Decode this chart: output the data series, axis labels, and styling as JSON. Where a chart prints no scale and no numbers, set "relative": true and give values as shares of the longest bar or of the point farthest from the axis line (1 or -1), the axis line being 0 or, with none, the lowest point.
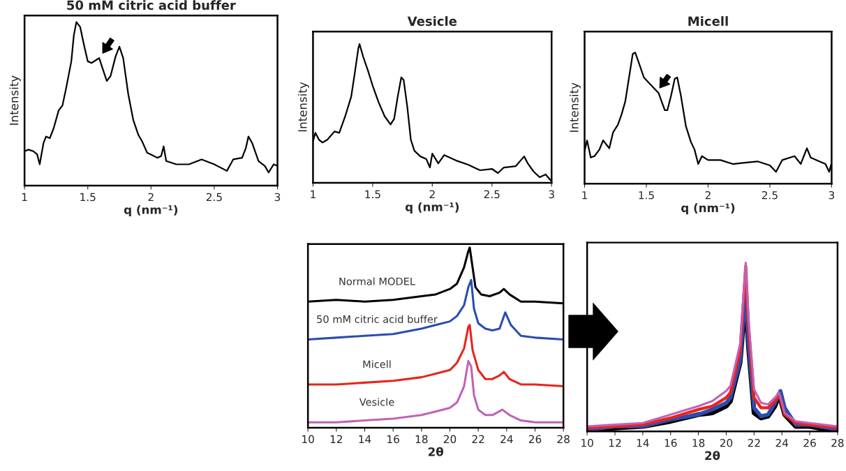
{
  "chart_data": [
    {
      "type": "line",
      "title": "50 mM citric acid buffer",
      "xlabel": "q (nm⁻¹)",
      "ylabel": "Intensity",
      "relative": true,
      "tick_labels": "x",
      "xlim": [
        1,
        3
      ],
      "xticks": [
        1,
        1.5,
        2,
        2.5,
        3
      ],
      "series": [
        {
          "color": "#000000",
          "x": [
            1.0,
            1.03,
            1.07,
            1.1,
            1.12,
            1.15,
            1.17,
            1.2,
            1.23,
            1.27,
            1.3,
            1.33,
            1.37,
            1.39,
            1.41,
            1.44,
            1.47,
            1.5,
            1.53,
            1.57,
            1.59,
            1.62,
            1.65,
            1.68,
            1.72,
            1.75,
            1.78,
            1.82,
            1.86,
            1.9,
            1.93,
            1.97,
            2.0,
            2.05,
            2.08,
            2.1,
            2.12,
            2.2,
            2.3,
            2.4,
            2.5,
            2.6,
            2.65,
            2.72,
            2.75,
            2.77,
            2.8,
            2.85,
            2.9,
            2.93,
            2.97,
            3.0
          ],
          "values": [
            0.21,
            0.22,
            0.21,
            0.19,
            0.13,
            0.26,
            0.3,
            0.29,
            0.35,
            0.46,
            0.49,
            0.6,
            0.76,
            0.92,
            1.0,
            0.97,
            0.86,
            0.76,
            0.75,
            0.77,
            0.78,
            0.71,
            0.64,
            0.67,
            0.79,
            0.85,
            0.78,
            0.56,
            0.4,
            0.31,
            0.27,
            0.2,
            0.19,
            0.17,
            0.18,
            0.24,
            0.15,
            0.13,
            0.13,
            0.16,
            0.13,
            0.09,
            0.16,
            0.17,
            0.23,
            0.3,
            0.26,
            0.15,
            0.12,
            0.08,
            0.13,
            0.12
          ]
        }
      ]
    },
    {
      "type": "line",
      "title": "Vesicle",
      "xlabel": "q (nm⁻¹)",
      "ylabel": "Intensity",
      "relative": true,
      "tick_labels": "x",
      "xlim": [
        1,
        3
      ],
      "xticks": [
        1,
        1.5,
        2,
        2.5,
        3
      ],
      "series": [
        {
          "color": "#000000",
          "x": [
            1.0,
            1.02,
            1.05,
            1.08,
            1.12,
            1.18,
            1.22,
            1.27,
            1.32,
            1.35,
            1.38,
            1.39,
            1.42,
            1.46,
            1.5,
            1.55,
            1.6,
            1.65,
            1.68,
            1.71,
            1.74,
            1.76,
            1.79,
            1.82,
            1.85,
            1.9,
            1.95,
            1.98,
            2.0,
            2.05,
            2.1,
            2.2,
            2.3,
            2.4,
            2.5,
            2.55,
            2.6,
            2.7,
            2.77,
            2.8,
            2.85,
            2.9,
            2.95,
            3.0
          ],
          "values": [
            0.3,
            0.36,
            0.31,
            0.29,
            0.31,
            0.37,
            0.36,
            0.48,
            0.62,
            0.79,
            0.97,
            1.0,
            0.91,
            0.81,
            0.7,
            0.58,
            0.48,
            0.42,
            0.46,
            0.62,
            0.76,
            0.74,
            0.55,
            0.31,
            0.23,
            0.19,
            0.17,
            0.11,
            0.21,
            0.14,
            0.2,
            0.16,
            0.13,
            0.09,
            0.1,
            0.07,
            0.11,
            0.12,
            0.19,
            0.14,
            0.08,
            0.04,
            0.06,
            0.01
          ]
        }
      ]
    },
    {
      "type": "line",
      "title": "Micell",
      "xlabel": "q (nm⁻¹)",
      "ylabel": "Intensity",
      "relative": true,
      "tick_labels": "x",
      "xlim": [
        1,
        3
      ],
      "xticks": [
        1,
        1.5,
        2,
        2.5,
        3
      ],
      "series": [
        {
          "color": "#000000",
          "x": [
            1.0,
            1.02,
            1.05,
            1.08,
            1.12,
            1.15,
            1.2,
            1.23,
            1.27,
            1.3,
            1.33,
            1.36,
            1.39,
            1.41,
            1.44,
            1.48,
            1.53,
            1.58,
            1.6,
            1.63,
            1.65,
            1.67,
            1.7,
            1.73,
            1.75,
            1.78,
            1.82,
            1.86,
            1.89,
            1.92,
            1.95,
            2.0,
            2.1,
            2.2,
            2.3,
            2.4,
            2.5,
            2.55,
            2.6,
            2.7,
            2.75,
            2.8,
            2.83,
            2.9,
            2.95,
            2.98,
            3.0
          ],
          "values": [
            0.25,
            0.33,
            0.2,
            0.21,
            0.26,
            0.33,
            0.27,
            0.39,
            0.45,
            0.53,
            0.63,
            0.81,
            0.99,
            1.0,
            0.92,
            0.81,
            0.76,
            0.71,
            0.69,
            0.61,
            0.56,
            0.56,
            0.67,
            0.8,
            0.81,
            0.67,
            0.44,
            0.32,
            0.26,
            0.15,
            0.21,
            0.18,
            0.18,
            0.15,
            0.16,
            0.17,
            0.14,
            0.09,
            0.18,
            0.21,
            0.15,
            0.27,
            0.2,
            0.17,
            0.15,
            0.09,
            0.16
          ]
        }
      ]
    },
    {
      "type": "line",
      "xlabel": "2θ",
      "relative": true,
      "tick_labels": "x",
      "xlim": [
        10,
        28
      ],
      "xticks": [
        10,
        12,
        14,
        16,
        18,
        20,
        22,
        24,
        26,
        28
      ],
      "series": [
        {
          "name": "Normal MODEL",
          "color": "#000000",
          "x": [
            10,
            12,
            14,
            16,
            18,
            19,
            20,
            20.5,
            21,
            21.3,
            21.4,
            21.6,
            21.8,
            22.2,
            22.8,
            23.5,
            23.8,
            24.2,
            25,
            26,
            28
          ],
          "values": [
            0.7,
            0.71,
            0.7,
            0.71,
            0.73,
            0.74,
            0.77,
            0.8,
            0.89,
            0.98,
            1.0,
            0.89,
            0.78,
            0.74,
            0.73,
            0.75,
            0.77,
            0.74,
            0.7,
            0.7,
            0.69
          ]
        },
        {
          "name": "50 mM citric acid buffer",
          "color": "#2a4db0",
          "x": [
            10,
            12,
            14,
            16,
            18,
            19,
            20,
            20.5,
            21,
            21.3,
            21.5,
            21.7,
            22,
            22.5,
            23,
            23.5,
            23.9,
            24.3,
            25,
            26,
            28
          ],
          "values": [
            0.49,
            0.5,
            0.51,
            0.52,
            0.55,
            0.57,
            0.59,
            0.62,
            0.68,
            0.78,
            0.82,
            0.66,
            0.58,
            0.55,
            0.54,
            0.55,
            0.64,
            0.57,
            0.51,
            0.5,
            0.49
          ]
        },
        {
          "name": "Micell",
          "color": "#e8241c",
          "x": [
            10,
            12,
            14,
            16,
            18,
            19,
            20,
            20.5,
            21,
            21.3,
            21.4,
            21.6,
            22,
            22.5,
            23,
            23.5,
            23.8,
            24.2,
            25,
            26,
            28
          ],
          "values": [
            0.24,
            0.24,
            0.25,
            0.26,
            0.28,
            0.3,
            0.32,
            0.36,
            0.44,
            0.56,
            0.57,
            0.43,
            0.32,
            0.27,
            0.27,
            0.29,
            0.31,
            0.27,
            0.24,
            0.24,
            0.23
          ]
        },
        {
          "name": "Vesicle",
          "color": "#c062b8",
          "x": [
            10,
            12,
            14,
            16,
            18,
            19,
            20,
            20.5,
            21,
            21.3,
            21.5,
            21.7,
            22,
            22.5,
            23,
            23.7,
            24.2,
            25,
            26,
            28
          ],
          "values": [
            0.03,
            0.03,
            0.04,
            0.05,
            0.07,
            0.09,
            0.11,
            0.14,
            0.23,
            0.37,
            0.34,
            0.18,
            0.1,
            0.07,
            0.07,
            0.1,
            0.07,
            0.04,
            0.03,
            0.03
          ]
        }
      ]
    },
    {
      "type": "line",
      "xlabel": "2θ",
      "relative": true,
      "tick_labels": "x",
      "xlim": [
        10,
        28
      ],
      "xticks": [
        10,
        12,
        14,
        16,
        18,
        20,
        22,
        24,
        26,
        28
      ],
      "series": [
        {
          "color": "#000000",
          "x": [
            10,
            12,
            14,
            16,
            18,
            19,
            20,
            20.3,
            21,
            21.3,
            21.4,
            21.6,
            22,
            22.5,
            23,
            23.5,
            23.8,
            24.2,
            25,
            26,
            28
          ],
          "values": [
            0.01,
            0.02,
            0.03,
            0.06,
            0.1,
            0.11,
            0.15,
            0.18,
            0.41,
            0.71,
            0.78,
            0.5,
            0.11,
            0.08,
            0.09,
            0.15,
            0.22,
            0.1,
            0.03,
            0.03,
            0.0
          ]
        },
        {
          "color": "#2a4db0",
          "x": [
            10,
            12,
            14,
            16,
            18,
            19,
            20,
            20.3,
            21,
            21.3,
            21.4,
            21.6,
            22,
            22.5,
            23,
            23.5,
            23.9,
            24.2,
            25,
            26,
            28
          ],
          "values": [
            0.01,
            0.03,
            0.03,
            0.07,
            0.1,
            0.13,
            0.17,
            0.2,
            0.42,
            0.74,
            0.81,
            0.52,
            0.14,
            0.09,
            0.1,
            0.17,
            0.24,
            0.14,
            0.04,
            0.04,
            0.01
          ]
        },
        {
          "color": "#e8241c",
          "x": [
            10,
            12,
            14,
            16,
            18,
            19,
            20,
            20.3,
            21,
            21.3,
            21.4,
            21.6,
            22,
            22.5,
            23,
            23.5,
            23.8,
            24.2,
            25,
            26,
            28
          ],
          "values": [
            0.02,
            0.03,
            0.04,
            0.08,
            0.13,
            0.15,
            0.2,
            0.23,
            0.48,
            0.85,
            0.98,
            0.62,
            0.2,
            0.14,
            0.14,
            0.18,
            0.22,
            0.1,
            0.05,
            0.04,
            0.02
          ]
        },
        {
          "color": "#c062b8",
          "x": [
            10,
            12,
            14,
            16,
            18,
            19,
            20,
            20.3,
            21,
            21.3,
            21.4,
            21.6,
            22,
            22.5,
            23,
            23.5,
            23.8,
            24.2,
            25,
            26,
            28
          ],
          "values": [
            0.03,
            0.04,
            0.05,
            0.1,
            0.15,
            0.18,
            0.24,
            0.27,
            0.52,
            0.88,
            1.0,
            0.67,
            0.25,
            0.17,
            0.16,
            0.2,
            0.23,
            0.11,
            0.06,
            0.05,
            0.03
          ]
        }
      ]
    }
  ]
}
